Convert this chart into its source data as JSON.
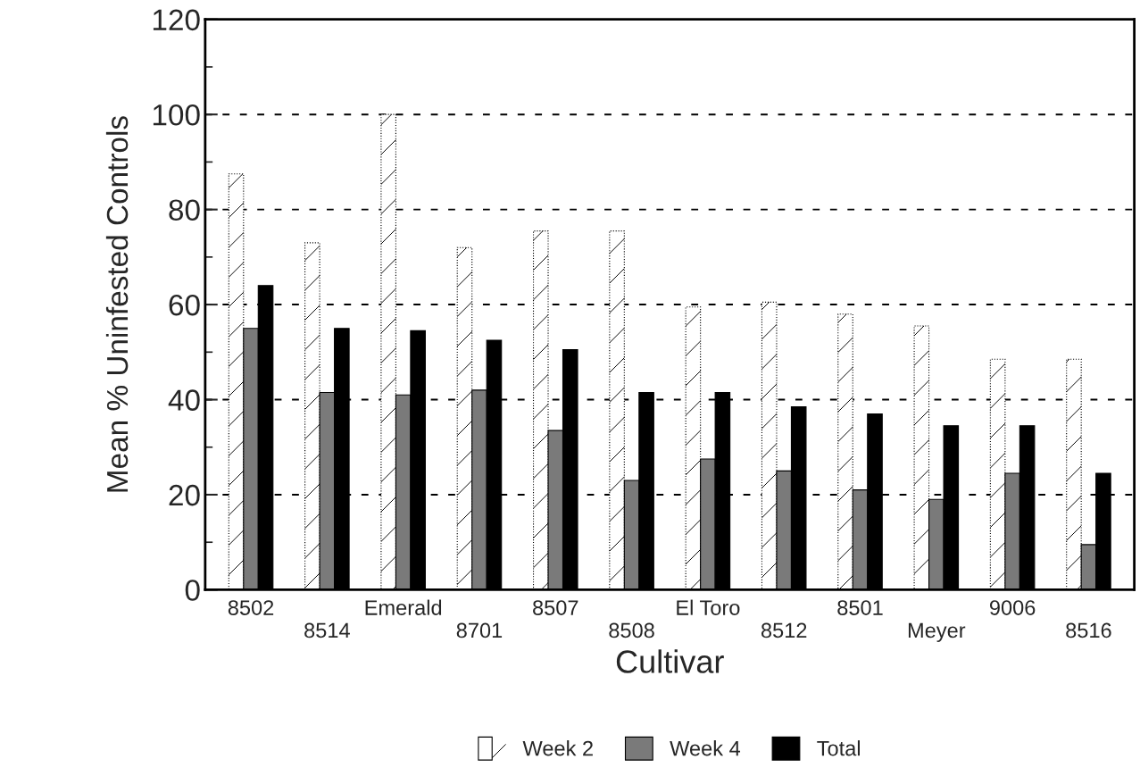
{
  "chart_data": {
    "type": "bar",
    "xlabel": "Cultivar",
    "ylabel": "Mean % Uninfested Controls",
    "categories": [
      "8502",
      "8514",
      "Emerald",
      "8701",
      "8507",
      "8508",
      "El Toro",
      "8512",
      "8501",
      "Meyer",
      "9006",
      "8516"
    ],
    "series": [
      {
        "name": "Week 2",
        "color": "#ffffff",
        "values": [
          87.5,
          73,
          100,
          72,
          75.5,
          75.5,
          59.5,
          60.5,
          58,
          55.5,
          48.5,
          48.5
        ]
      },
      {
        "name": "Week 4",
        "color": "#7a7a7a",
        "values": [
          55,
          41.5,
          41,
          42,
          33.5,
          23,
          27.5,
          25,
          21,
          19,
          24.5,
          9.5
        ]
      },
      {
        "name": "Total",
        "color": "#000000",
        "values": [
          64,
          55,
          54.5,
          52.5,
          50.5,
          41.5,
          41.5,
          38.5,
          37,
          34.5,
          34.5,
          24.5
        ]
      }
    ],
    "ylim": [
      0,
      120
    ],
    "yticks": [
      0,
      {
        "value": 10,
        "label": null
      },
      20,
      {
        "value": 30,
        "label": null
      },
      40,
      {
        "value": 50,
        "label": null
      },
      60,
      {
        "value": 70,
        "label": null
      },
      80,
      {
        "value": 90,
        "label": null
      },
      100,
      {
        "value": 110,
        "label": null
      },
      120
    ],
    "grid": "y",
    "legend": "bottom"
  }
}
